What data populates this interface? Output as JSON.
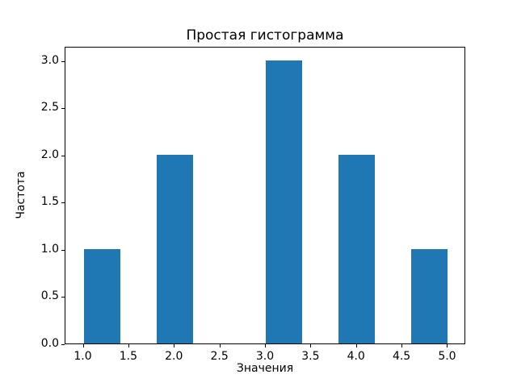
{
  "chart_data": {
    "type": "bar",
    "subtype": "histogram",
    "title": "Простая гистограмма",
    "xlabel": "Значения",
    "ylabel": "Частота",
    "bar_color": "#1f77b4",
    "bin_edges": [
      1.0,
      1.4,
      1.8,
      2.2,
      2.6,
      3.0,
      3.4,
      3.8,
      4.2,
      4.6,
      5.0
    ],
    "counts": [
      1,
      0,
      2,
      0,
      0,
      3,
      0,
      2,
      0,
      1
    ],
    "visible_bars": [
      {
        "x_range": [
          1.0,
          1.4
        ],
        "frequency": 1
      },
      {
        "x_range": [
          1.8,
          2.2
        ],
        "frequency": 2
      },
      {
        "x_range": [
          3.0,
          3.4
        ],
        "frequency": 3
      },
      {
        "x_range": [
          3.8,
          4.2
        ],
        "frequency": 2
      },
      {
        "x_range": [
          4.6,
          5.0
        ],
        "frequency": 1
      }
    ],
    "xlim": [
      0.8,
      5.2
    ],
    "ylim": [
      0,
      3.15
    ],
    "xticks": [
      1.0,
      1.5,
      2.0,
      2.5,
      3.0,
      3.5,
      4.0,
      4.5,
      5.0
    ],
    "xtick_labels": [
      "1.0",
      "1.5",
      "2.0",
      "2.5",
      "3.0",
      "3.5",
      "4.0",
      "4.5",
      "5.0"
    ],
    "yticks": [
      0.0,
      0.5,
      1.0,
      1.5,
      2.0,
      2.5,
      3.0
    ],
    "ytick_labels": [
      "0.0",
      "0.5",
      "1.0",
      "1.5",
      "2.0",
      "2.5",
      "3.0"
    ],
    "grid": false,
    "legend": null
  }
}
